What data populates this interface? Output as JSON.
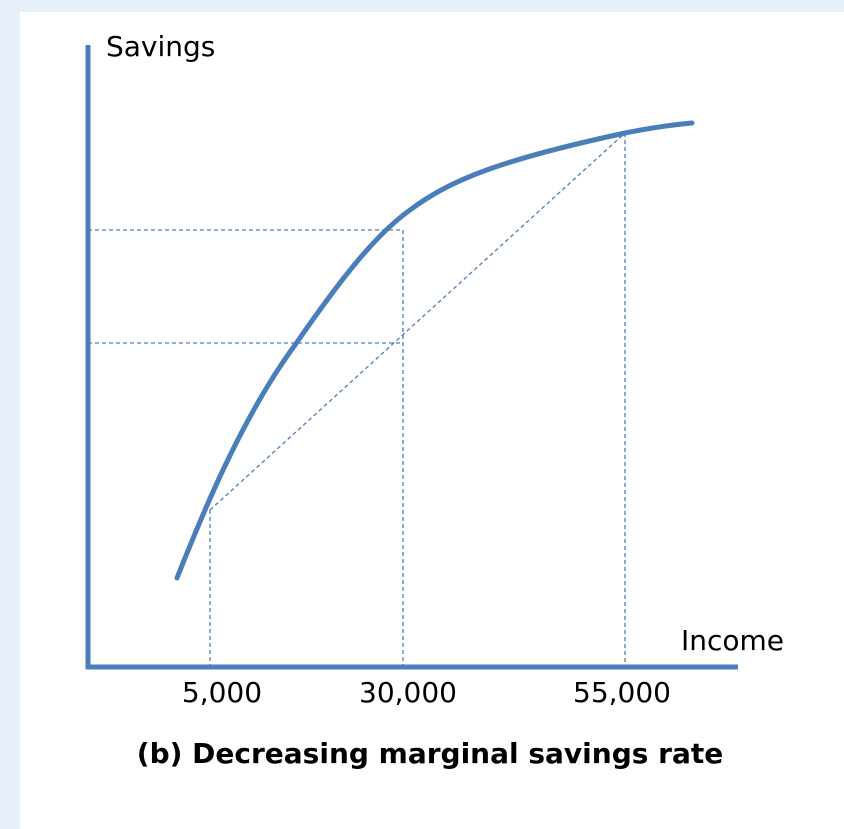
{
  "y_axis_label": "Savings",
  "x_axis_label": "Income",
  "x_tick_labels": [
    "5,000",
    "30,000",
    "55,000"
  ],
  "caption": "(b) Decreasing marginal savings rate"
}
